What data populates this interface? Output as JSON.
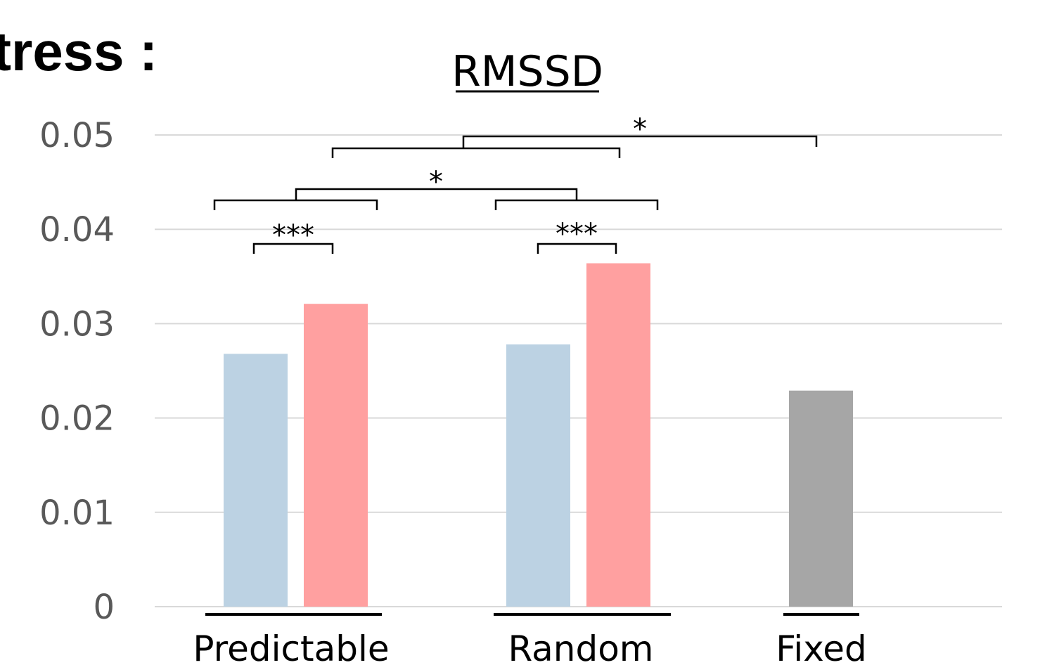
{
  "heading": "tress :",
  "chart_data": {
    "type": "bar",
    "title": "RMSSD",
    "xlabel": "",
    "ylabel": "",
    "ylim": [
      0,
      0.05
    ],
    "yticks": [
      "0",
      "0.01",
      "0.02",
      "0.03",
      "0.04",
      "0.05"
    ],
    "grid": true,
    "categories": [
      "Predictable",
      "Random",
      "Fixed"
    ],
    "bars": [
      {
        "category": "Predictable",
        "value": 0.0268,
        "color": "#bcd2e3"
      },
      {
        "category": "Predictable",
        "value": 0.0321,
        "color": "#ffa0a0"
      },
      {
        "category": "Random",
        "value": 0.0278,
        "color": "#bcd2e3"
      },
      {
        "category": "Random",
        "value": 0.0364,
        "color": "#ffa0a0"
      },
      {
        "category": "Fixed",
        "value": 0.0229,
        "color": "#a6a6a6"
      }
    ],
    "significance": [
      {
        "label": "***"
      },
      {
        "label": "***"
      },
      {
        "label": "*"
      },
      {
        "label": ""
      },
      {
        "label": "*"
      }
    ]
  }
}
